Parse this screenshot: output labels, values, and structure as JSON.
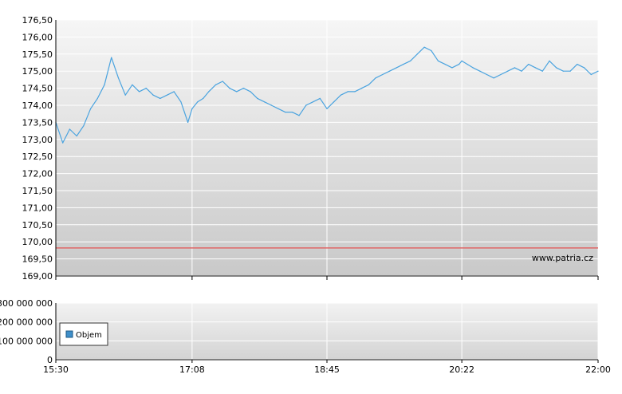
{
  "chart_data": [
    {
      "type": "line",
      "title": "",
      "xlabel": "",
      "ylabel": "",
      "ylim": [
        169,
        176.5
      ],
      "y_ticks": [
        "176,50",
        "176,00",
        "175,50",
        "175,00",
        "174,50",
        "174,00",
        "173,50",
        "173,00",
        "172,50",
        "172,00",
        "171,50",
        "171,00",
        "170,50",
        "170,00",
        "169,50",
        "169,00"
      ],
      "x_ticks": [
        "15:30",
        "17:08",
        "18:45",
        "20:22",
        "22:00"
      ],
      "grid": true,
      "reference_line": {
        "value": 169.82,
        "color": "#e06666"
      },
      "watermark": "www.patria.cz",
      "series": [
        {
          "color": "#4aa3df",
          "x": [
            "15:30",
            "15:35",
            "15:40",
            "15:45",
            "15:50",
            "15:55",
            "16:00",
            "16:05",
            "16:10",
            "16:15",
            "16:20",
            "16:25",
            "16:30",
            "16:35",
            "16:40",
            "16:45",
            "16:50",
            "16:55",
            "17:00",
            "17:05",
            "17:08",
            "17:12",
            "17:16",
            "17:20",
            "17:25",
            "17:30",
            "17:35",
            "17:40",
            "17:45",
            "17:50",
            "17:55",
            "18:00",
            "18:05",
            "18:10",
            "18:15",
            "18:20",
            "18:25",
            "18:30",
            "18:35",
            "18:40",
            "18:45",
            "18:50",
            "18:55",
            "19:00",
            "19:05",
            "19:10",
            "19:15",
            "19:20",
            "19:25",
            "19:30",
            "19:35",
            "19:40",
            "19:45",
            "19:50",
            "19:55",
            "20:00",
            "20:05",
            "20:10",
            "20:15",
            "20:20",
            "20:22",
            "20:26",
            "20:30",
            "20:35",
            "20:40",
            "20:45",
            "20:50",
            "20:55",
            "21:00",
            "21:05",
            "21:10",
            "21:15",
            "21:20",
            "21:25",
            "21:30",
            "21:35",
            "21:40",
            "21:45",
            "21:50",
            "21:55",
            "22:00"
          ],
          "values": [
            173.5,
            172.9,
            173.3,
            173.1,
            173.4,
            173.9,
            174.2,
            174.6,
            175.4,
            174.8,
            174.3,
            174.6,
            174.4,
            174.5,
            174.3,
            174.2,
            174.3,
            174.4,
            174.1,
            173.5,
            173.9,
            174.1,
            174.2,
            174.4,
            174.6,
            174.7,
            174.5,
            174.4,
            174.5,
            174.4,
            174.2,
            174.1,
            174.0,
            173.9,
            173.8,
            173.8,
            173.7,
            174.0,
            174.1,
            174.2,
            173.9,
            174.1,
            174.3,
            174.4,
            174.4,
            174.5,
            174.6,
            174.8,
            174.9,
            175.0,
            175.1,
            175.2,
            175.3,
            175.5,
            175.7,
            175.6,
            175.3,
            175.2,
            175.1,
            175.2,
            175.3,
            175.2,
            175.1,
            175.0,
            174.9,
            174.8,
            174.9,
            175.0,
            175.1,
            175.0,
            175.2,
            175.1,
            175.0,
            175.3,
            175.1,
            175.0,
            175.0,
            175.2,
            175.1,
            174.9,
            175.0
          ]
        }
      ]
    },
    {
      "type": "bar",
      "title": "",
      "xlabel": "",
      "ylabel": "",
      "ylim": [
        0,
        300000000
      ],
      "y_ticks": [
        "300 000 000",
        "200 000 000",
        "100 000 000",
        "0"
      ],
      "x_ticks": [
        "15:30",
        "17:08",
        "18:45",
        "20:22",
        "22:00"
      ],
      "grid": true,
      "legend": {
        "position": "bottom-left",
        "entries": [
          {
            "label": "Objem",
            "color": "#3f8fc9"
          }
        ]
      },
      "series": [
        {
          "name": "Objem",
          "values": []
        }
      ]
    }
  ]
}
